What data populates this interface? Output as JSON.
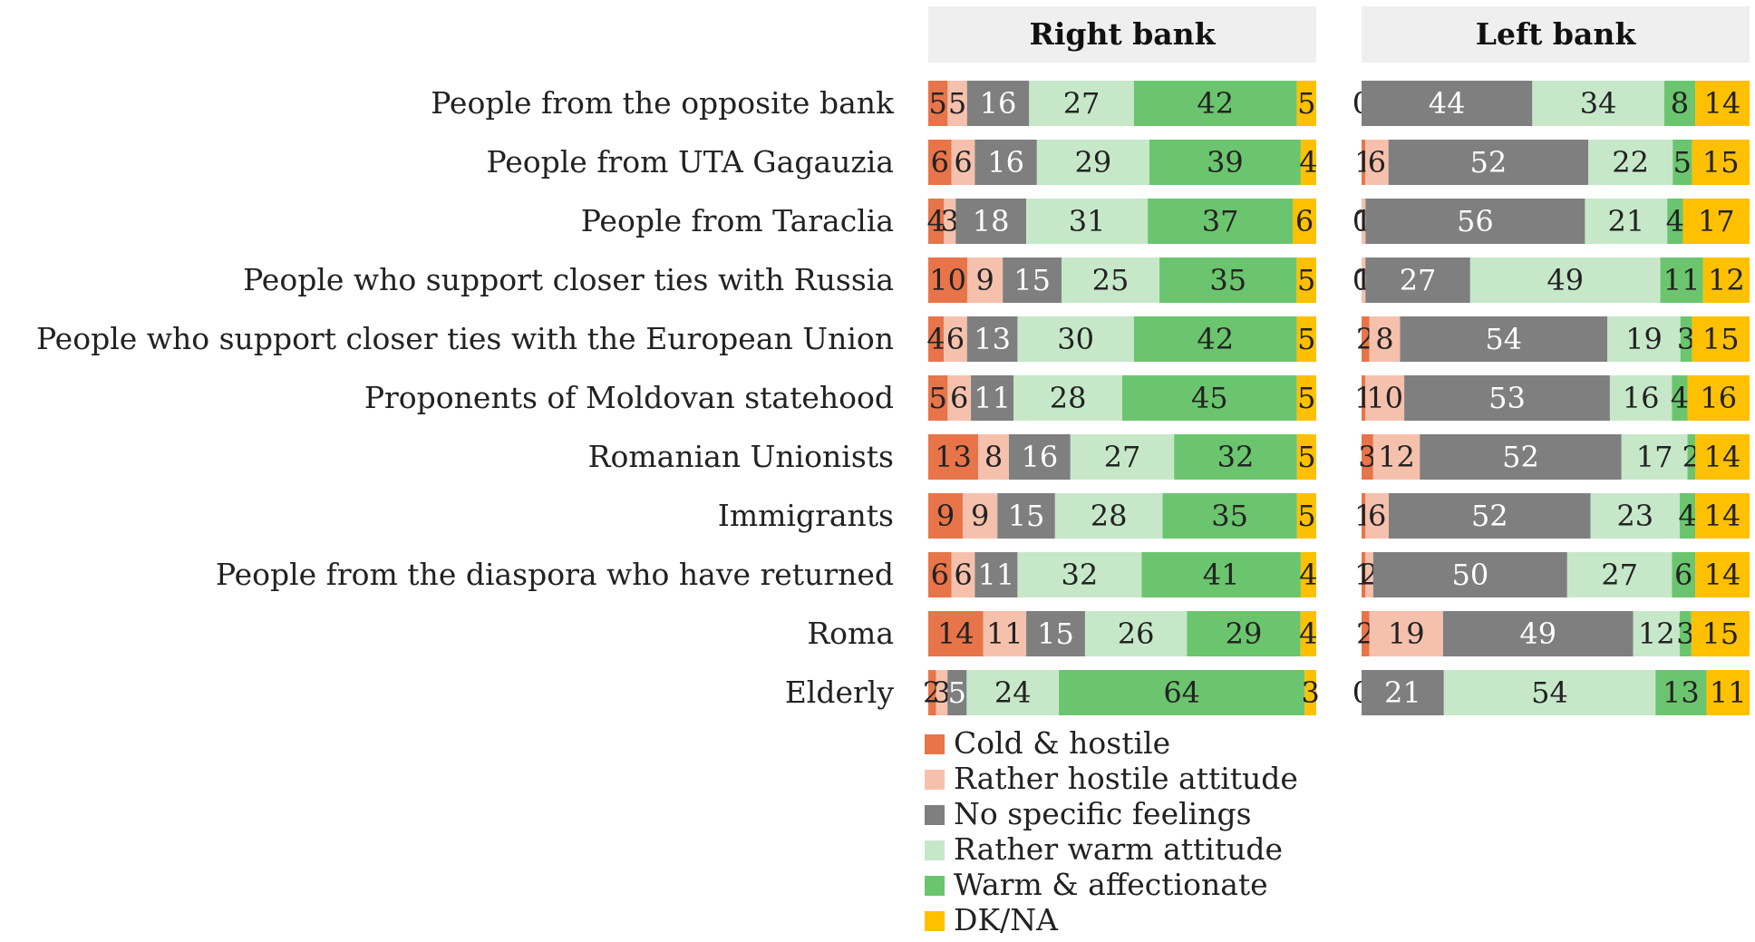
{
  "chart_data": {
    "type": "bar",
    "orientation": "horizontal",
    "stacked": true,
    "categories": [
      "People from the opposite bank",
      "People from UTA Gagauzia",
      "People from Taraclia",
      "People who support closer ties with Russia",
      "People who support closer ties with the European Union",
      "Proponents of Moldovan statehood",
      "Romanian Unionists",
      "Immigrants",
      "People from the diaspora who have returned",
      "Roma",
      "Elderly"
    ],
    "series": [
      {
        "name": "Cold & hostile",
        "color": "#E8744A"
      },
      {
        "name": "Rather hostile attitude",
        "color": "#F5C1AD"
      },
      {
        "name": "No specific feelings",
        "color": "#7F7F7F"
      },
      {
        "name": "Rather warm attitude",
        "color": "#C6E8C9"
      },
      {
        "name": "Warm & affectionate",
        "color": "#6BC56E"
      },
      {
        "name": "DK/NA",
        "color": "#FFC000"
      }
    ],
    "panels": [
      {
        "title": "Right bank",
        "values": [
          [
            5,
            5,
            16,
            27,
            42,
            5
          ],
          [
            6,
            6,
            16,
            29,
            39,
            4
          ],
          [
            4,
            3,
            18,
            31,
            37,
            6
          ],
          [
            10,
            9,
            15,
            25,
            35,
            5
          ],
          [
            4,
            6,
            13,
            30,
            42,
            5
          ],
          [
            5,
            6,
            11,
            28,
            45,
            5
          ],
          [
            13,
            8,
            16,
            27,
            32,
            5
          ],
          [
            9,
            9,
            15,
            28,
            35,
            5
          ],
          [
            6,
            6,
            11,
            32,
            41,
            4
          ],
          [
            14,
            11,
            15,
            26,
            29,
            4
          ],
          [
            2,
            3,
            5,
            24,
            64,
            3
          ]
        ]
      },
      {
        "title": "Left bank",
        "values": [
          [
            0,
            0,
            44,
            34,
            8,
            14
          ],
          [
            1,
            6,
            52,
            22,
            5,
            15
          ],
          [
            0,
            1,
            56,
            21,
            4,
            17
          ],
          [
            0,
            1,
            27,
            49,
            11,
            12
          ],
          [
            2,
            8,
            54,
            19,
            3,
            15
          ],
          [
            1,
            10,
            53,
            16,
            4,
            16
          ],
          [
            3,
            12,
            52,
            17,
            2,
            14
          ],
          [
            1,
            6,
            52,
            23,
            4,
            14
          ],
          [
            1,
            2,
            50,
            27,
            6,
            14
          ],
          [
            2,
            19,
            49,
            12,
            3,
            15
          ],
          [
            0,
            0,
            21,
            54,
            13,
            11
          ]
        ]
      }
    ],
    "xlim": [
      0,
      100
    ],
    "legend_position": "bottom"
  }
}
